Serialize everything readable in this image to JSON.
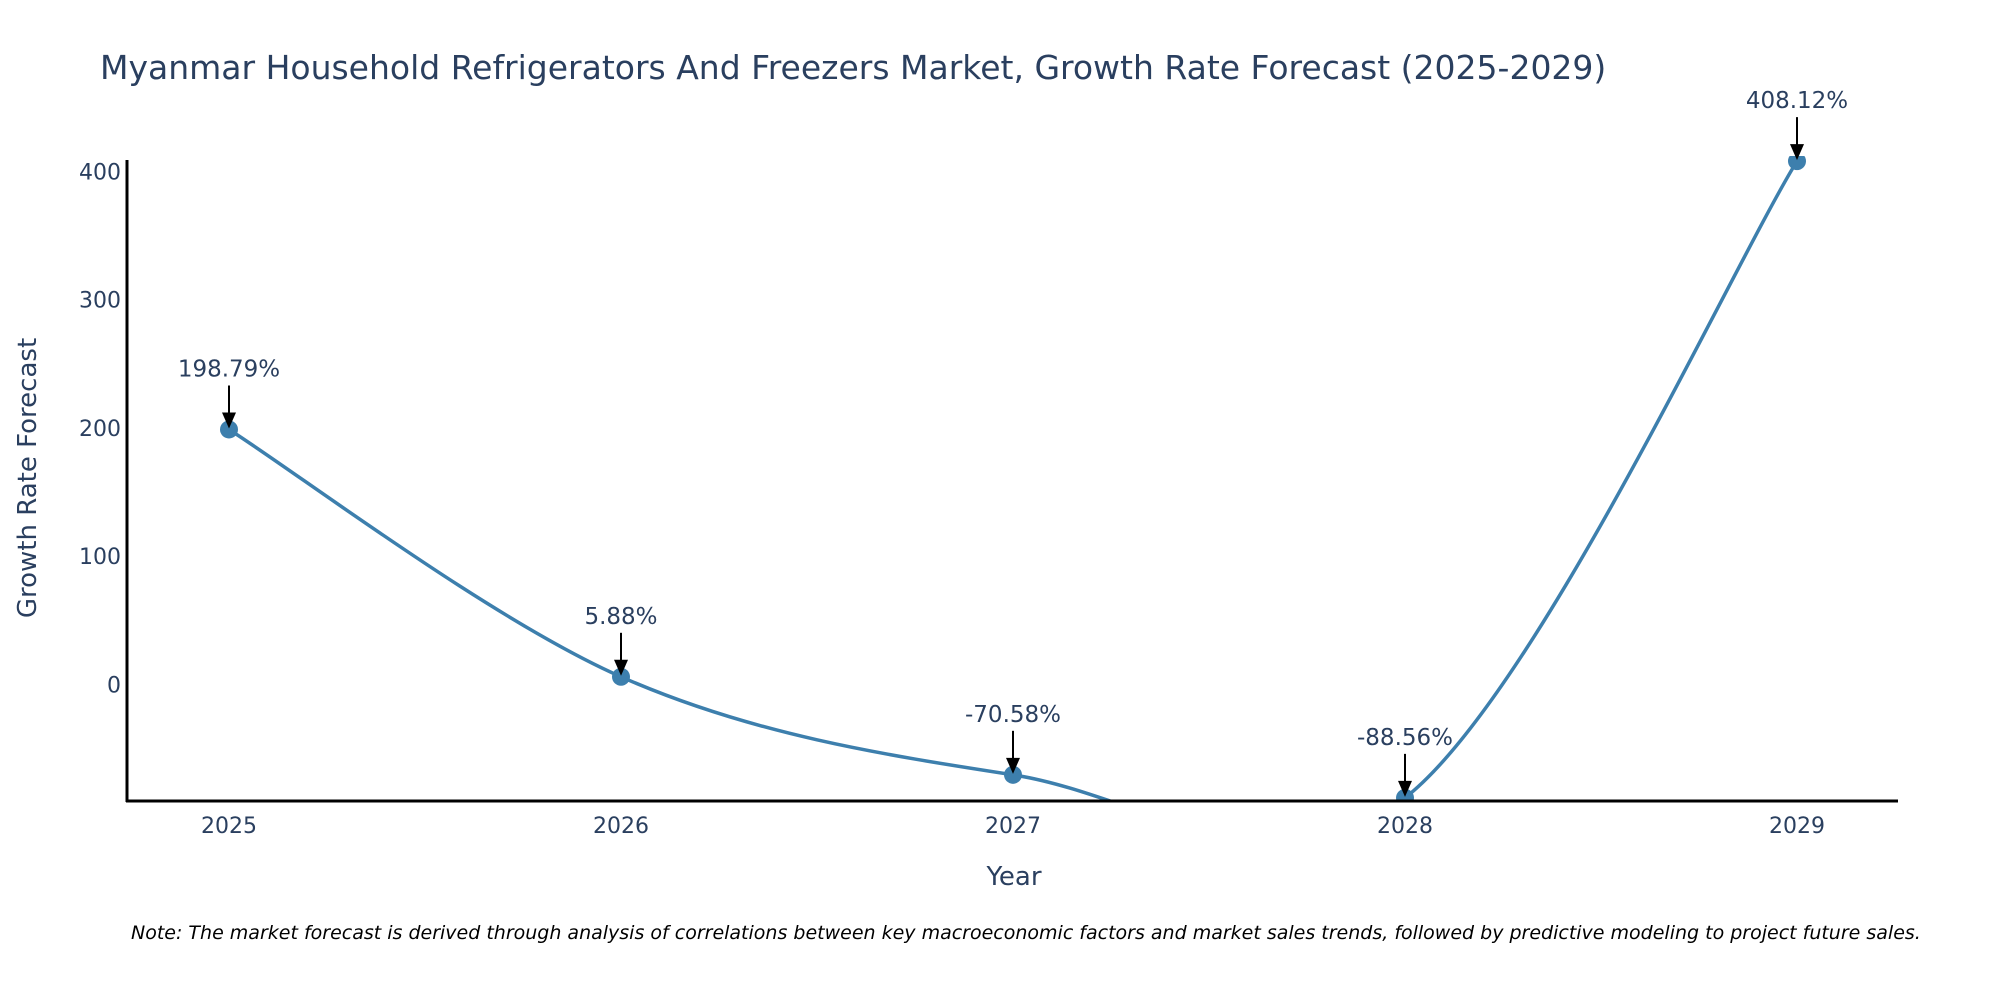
{
  "colors": {
    "line": "#3d7fad",
    "text": "#2a3f5f",
    "axis": "#000000",
    "arrow": "#000000",
    "background": "#ffffff"
  },
  "chart_data": {
    "type": "line",
    "title": "Myanmar Household Refrigerators And Freezers Market, Growth Rate Forecast (2025-2029)",
    "xlabel": "Year",
    "ylabel": "Growth Rate Forecast",
    "categories": [
      "2025",
      "2026",
      "2027",
      "2028",
      "2029"
    ],
    "series": [
      {
        "name": "Growth Rate Forecast",
        "values": [
          198.79,
          5.88,
          -70.58,
          -88.56,
          408.12
        ],
        "labels": [
          "198.79%",
          "5.88%",
          "-70.58%",
          "-88.56%",
          "408.12%"
        ]
      }
    ],
    "yticks": [
      0,
      100,
      200,
      300,
      400
    ],
    "ylim": [
      -91,
      409
    ],
    "grid": false,
    "line_shape": "spline",
    "markers": true
  },
  "note": "Note: The market forecast is derived through analysis of correlations between key macroeconomic factors and market sales trends, followed by predictive modeling to project future sales."
}
